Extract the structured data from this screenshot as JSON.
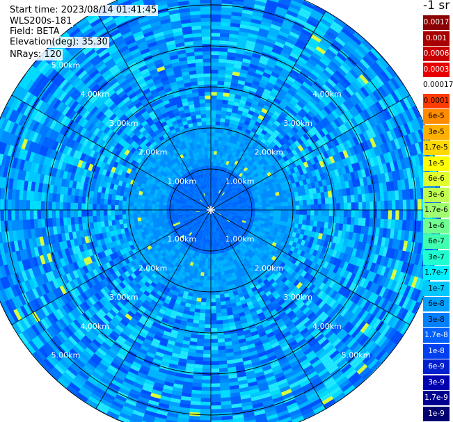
{
  "header": {
    "start_time": "Start time: 2023/08/14 01:41:45",
    "instrument": "WLS200s-181",
    "field": "Field: BETA",
    "elevation": "Elevation(deg): 35.30",
    "nrays": "NRays: 120"
  },
  "ppi": {
    "range_rings_km": [
      1,
      2,
      3,
      4,
      5
    ],
    "ring_labels": [
      "1.00km",
      "2.00km",
      "3.00km",
      "4.00km",
      "5.00km"
    ],
    "azimuth_lines_deg": [
      0,
      30,
      60,
      90,
      120,
      150
    ],
    "max_range_km": 5.6,
    "nrays": 120
  },
  "colorbar": {
    "title": "-1 sr",
    "levels": [
      {
        "label": "0.0017",
        "color": "#8b0000"
      },
      {
        "label": "0.001",
        "color": "#a80000"
      },
      {
        "label": "0.0006",
        "color": "#c80000"
      },
      {
        "label": "0.0003",
        "color": "#e80000"
      },
      {
        "label": "0.00017",
        "color": "#ffffff"
      },
      {
        "label": "0.0001",
        "color": "#ff3c00"
      },
      {
        "label": "6e-5",
        "color": "#ff8c00"
      },
      {
        "label": "3e-5",
        "color": "#ffb000"
      },
      {
        "label": "1.7e-5",
        "color": "#ffd800"
      },
      {
        "label": "1e-5",
        "color": "#ffff00"
      },
      {
        "label": "6e-6",
        "color": "#e0ff30"
      },
      {
        "label": "3e-6",
        "color": "#c0ff50"
      },
      {
        "label": "1.7e-6",
        "color": "#a0ff70"
      },
      {
        "label": "1e-6",
        "color": "#70ff90"
      },
      {
        "label": "6e-7",
        "color": "#40ffb0"
      },
      {
        "label": "3e-7",
        "color": "#20ffd0"
      },
      {
        "label": "1.7e-7",
        "color": "#00f0ff"
      },
      {
        "label": "1e-7",
        "color": "#00c8ff"
      },
      {
        "label": "6e-8",
        "color": "#00a0ff"
      },
      {
        "label": "3e-8",
        "color": "#0080ff"
      },
      {
        "label": "1.7e-8",
        "color": "#0060ff"
      },
      {
        "label": "1e-8",
        "color": "#0040f0"
      },
      {
        "label": "6e-9",
        "color": "#0020d0"
      },
      {
        "label": "3e-9",
        "color": "#0000b0"
      },
      {
        "label": "1.7e-9",
        "color": "#000090"
      },
      {
        "label": "1e-9",
        "color": "#000070"
      }
    ]
  }
}
